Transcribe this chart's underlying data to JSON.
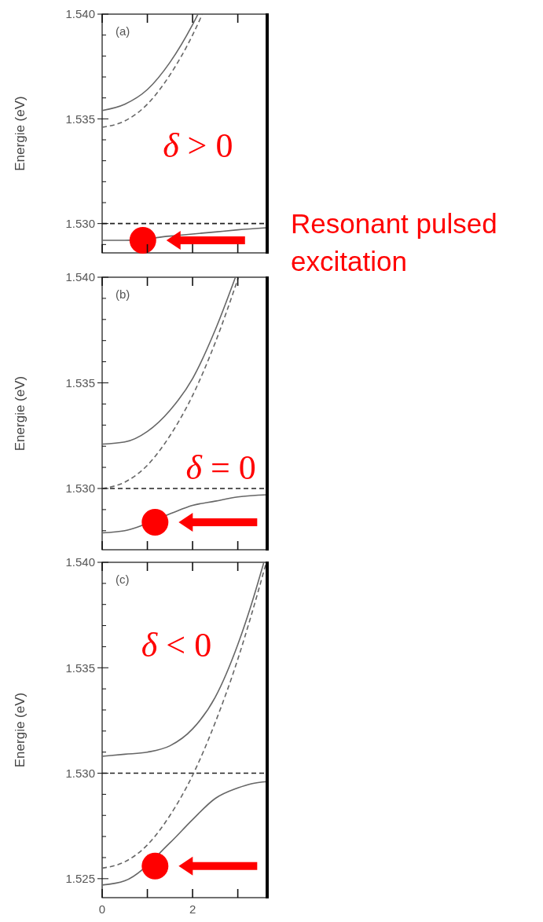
{
  "chart_data": [
    {
      "type": "line",
      "ylabel": "Energie (eV)",
      "xlim": [
        0,
        3.65
      ],
      "ylim": [
        1.5286,
        1.54
      ],
      "tick_labels": "y",
      "xticks": [
        {
          "value": 0,
          "label": null
        },
        {
          "value": 1,
          "label": null
        },
        {
          "value": 2,
          "label": null
        },
        {
          "value": 3,
          "label": null
        }
      ],
      "yticks": [
        {
          "value": 1.529,
          "label": null
        },
        {
          "value": 1.53,
          "label": "1.530"
        },
        {
          "value": 1.531,
          "label": null
        },
        {
          "value": 1.532,
          "label": null
        },
        {
          "value": 1.533,
          "label": null
        },
        {
          "value": 1.534,
          "label": null
        },
        {
          "value": 1.535,
          "label": "1.535"
        },
        {
          "value": 1.536,
          "label": null
        },
        {
          "value": 1.537,
          "label": null
        },
        {
          "value": 1.538,
          "label": null
        },
        {
          "value": 1.539,
          "label": null
        },
        {
          "value": 1.54,
          "label": "1.540"
        }
      ],
      "ref_lines": [
        {
          "axis": "y",
          "value": 1.53,
          "color": "#222222",
          "line_style": "dashed"
        }
      ],
      "series": [
        {
          "type": "line",
          "color": "#666666",
          "line_style": "dashed",
          "x": [
            0,
            0.5,
            1,
            1.5,
            2,
            2.216
          ],
          "values": [
            1.5346,
            1.5349,
            1.5357,
            1.5371,
            1.539,
            1.54
          ]
        },
        {
          "type": "line",
          "color": "#666666",
          "line_style": "solid",
          "x": [
            0,
            0.5,
            1,
            1.5,
            2,
            2.12
          ],
          "values": [
            1.5354,
            1.5357,
            1.5364,
            1.5377,
            1.5395,
            1.54
          ]
        },
        {
          "type": "line",
          "color": "#666666",
          "line_style": "solid",
          "x": [
            0,
            0.5,
            1.5,
            2,
            2.5,
            3,
            3.65
          ],
          "values": [
            1.5292,
            1.5292,
            1.5294,
            1.5295,
            1.5296,
            1.5297,
            1.5298
          ]
        },
        {
          "type": "scatter",
          "color": "#ff0000",
          "marker": "circle",
          "x": [
            0.9
          ],
          "values": [
            1.5292
          ]
        }
      ],
      "annotations": [
        "(a)",
        "δ > 0",
        "Resonant pulsed excitation"
      ]
    },
    {
      "type": "line",
      "ylabel": "Energie (eV)",
      "xlim": [
        0,
        3.65
      ],
      "ylim": [
        1.5271,
        1.54
      ],
      "tick_labels": "y",
      "xticks": [
        {
          "value": 0,
          "label": null
        },
        {
          "value": 1,
          "label": null
        },
        {
          "value": 2,
          "label": null
        },
        {
          "value": 3,
          "label": null
        }
      ],
      "yticks": [
        {
          "value": 1.528,
          "label": null
        },
        {
          "value": 1.529,
          "label": null
        },
        {
          "value": 1.53,
          "label": "1.530"
        },
        {
          "value": 1.531,
          "label": null
        },
        {
          "value": 1.532,
          "label": null
        },
        {
          "value": 1.533,
          "label": null
        },
        {
          "value": 1.534,
          "label": null
        },
        {
          "value": 1.535,
          "label": "1.535"
        },
        {
          "value": 1.536,
          "label": null
        },
        {
          "value": 1.537,
          "label": null
        },
        {
          "value": 1.538,
          "label": null
        },
        {
          "value": 1.539,
          "label": null
        },
        {
          "value": 1.54,
          "label": "1.540"
        }
      ],
      "ref_lines": [
        {
          "axis": "y",
          "value": 1.53,
          "color": "#222222",
          "line_style": "dashed"
        }
      ],
      "series": [
        {
          "type": "line",
          "color": "#666666",
          "line_style": "dashed",
          "x": [
            0,
            0.5,
            1,
            1.5,
            2,
            2.5,
            3.015
          ],
          "values": [
            1.53,
            1.5303,
            1.5311,
            1.5325,
            1.5344,
            1.5369,
            1.54
          ]
        },
        {
          "type": "line",
          "color": "#666666",
          "line_style": "solid",
          "x": [
            0,
            0.5,
            1,
            1.5,
            2,
            2.5,
            2.948
          ],
          "values": [
            1.5321,
            1.5322,
            1.5327,
            1.5337,
            1.5352,
            1.5375,
            1.54
          ]
        },
        {
          "type": "line",
          "color": "#666666",
          "line_style": "solid",
          "x": [
            0,
            0.5,
            1.5,
            2,
            2.5,
            3,
            3.65
          ],
          "values": [
            1.5279,
            1.528,
            1.5288,
            1.5292,
            1.5294,
            1.5296,
            1.5297
          ]
        },
        {
          "type": "scatter",
          "color": "#ff0000",
          "marker": "circle",
          "x": [
            1.17
          ],
          "values": [
            1.5284
          ]
        }
      ],
      "annotations": [
        "(b)",
        "δ = 0"
      ]
    },
    {
      "type": "line",
      "ylabel": "Energie (eV)",
      "xlim": [
        0,
        3.65
      ],
      "ylim": [
        1.5241,
        1.54
      ],
      "xticks": [
        0,
        {
          "value": 1,
          "label": null
        },
        2,
        {
          "value": 3,
          "label": null
        }
      ],
      "yticks": [
        {
          "value": 1.525,
          "label": "1.525"
        },
        {
          "value": 1.526,
          "label": null
        },
        {
          "value": 1.527,
          "label": null
        },
        {
          "value": 1.528,
          "label": null
        },
        {
          "value": 1.529,
          "label": null
        },
        {
          "value": 1.53,
          "label": "1.530"
        },
        {
          "value": 1.531,
          "label": null
        },
        {
          "value": 1.532,
          "label": null
        },
        {
          "value": 1.533,
          "label": null
        },
        {
          "value": 1.534,
          "label": null
        },
        {
          "value": 1.535,
          "label": "1.535"
        },
        {
          "value": 1.536,
          "label": null
        },
        {
          "value": 1.537,
          "label": null
        },
        {
          "value": 1.538,
          "label": null
        },
        {
          "value": 1.539,
          "label": null
        },
        {
          "value": 1.54,
          "label": "1.540"
        }
      ],
      "ref_lines": [
        {
          "axis": "y",
          "value": 1.53,
          "color": "#222222",
          "line_style": "dashed"
        }
      ],
      "series": [
        {
          "type": "line",
          "color": "#666666",
          "line_style": "dashed",
          "x": [
            0,
            0.5,
            1,
            1.5,
            2,
            2.5,
            3,
            3.3,
            3.631
          ],
          "values": [
            1.5255,
            1.5258,
            1.5266,
            1.528,
            1.5299,
            1.5324,
            1.5354,
            1.5375,
            1.54
          ]
        },
        {
          "type": "line",
          "color": "#666666",
          "line_style": "solid",
          "x": [
            0,
            0.5,
            1,
            1.5,
            2,
            2.5,
            3,
            3.3,
            3.577
          ],
          "values": [
            1.5308,
            1.5309,
            1.531,
            1.5313,
            1.5321,
            1.5336,
            1.5361,
            1.538,
            1.54
          ]
        },
        {
          "type": "line",
          "color": "#666666",
          "line_style": "solid",
          "x": [
            0,
            0.5,
            1.5,
            2,
            2.5,
            3,
            3.3,
            3.65
          ],
          "values": [
            1.5247,
            1.5249,
            1.5267,
            1.5278,
            1.5288,
            1.5293,
            1.5295,
            1.5296
          ]
        },
        {
          "type": "scatter",
          "color": "#ff0000",
          "marker": "circle",
          "x": [
            1.17
          ],
          "values": [
            1.5256
          ]
        }
      ],
      "annotations": [
        "(c)",
        "δ < 0"
      ]
    }
  ]
}
